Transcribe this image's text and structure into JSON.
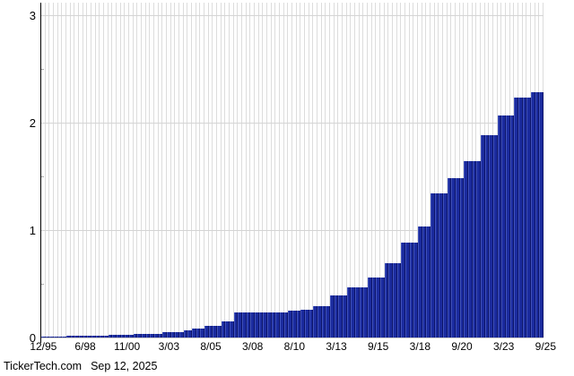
{
  "footer": {
    "source": "TickerTech.com",
    "date": "Sep 12, 2025"
  },
  "chart_data": {
    "type": "bar",
    "title": "",
    "xlabel": "",
    "ylabel": "",
    "ylim": [
      0,
      3
    ],
    "y_ticks": [
      0,
      1,
      2,
      3
    ],
    "y_minor_ticks": [
      0.5,
      1.5,
      2.5
    ],
    "grid": "on",
    "legend": "none",
    "bar_color": "#1b2b9e",
    "bar_highlight_color": "#4052bc",
    "bar_shadow_color": "#0c1468",
    "grid_color": "#dcdcdc",
    "axis_color": "#000000",
    "x_tick_labels": [
      "12/95",
      "6/98",
      "11/00",
      "3/03",
      "8/05",
      "3/08",
      "8/10",
      "3/13",
      "9/15",
      "3/18",
      "9/20",
      "3/23",
      "9/25"
    ],
    "x_tick_positions": [
      0,
      10,
      20,
      30,
      40,
      50,
      60,
      70,
      80,
      90,
      100,
      110,
      120
    ],
    "values": [
      0.01,
      0.01,
      0.01,
      0.01,
      0.01,
      0.01,
      0.015,
      0.015,
      0.015,
      0.015,
      0.015,
      0.015,
      0.015,
      0.015,
      0.015,
      0.015,
      0.025,
      0.025,
      0.025,
      0.025,
      0.025,
      0.025,
      0.03,
      0.03,
      0.03,
      0.03,
      0.03,
      0.03,
      0.03,
      0.05,
      0.05,
      0.05,
      0.05,
      0.05,
      0.065,
      0.065,
      0.085,
      0.085,
      0.085,
      0.105,
      0.105,
      0.105,
      0.105,
      0.15,
      0.15,
      0.15,
      0.235,
      0.235,
      0.235,
      0.235,
      0.235,
      0.235,
      0.235,
      0.235,
      0.235,
      0.235,
      0.235,
      0.235,
      0.235,
      0.25,
      0.25,
      0.25,
      0.26,
      0.26,
      0.26,
      0.29,
      0.29,
      0.29,
      0.29,
      0.39,
      0.39,
      0.39,
      0.39,
      0.47,
      0.47,
      0.47,
      0.47,
      0.47,
      0.56,
      0.56,
      0.56,
      0.56,
      0.69,
      0.69,
      0.69,
      0.69,
      0.88,
      0.88,
      0.88,
      0.88,
      1.03,
      1.03,
      1.03,
      1.34,
      1.34,
      1.34,
      1.34,
      1.48,
      1.48,
      1.48,
      1.48,
      1.64,
      1.64,
      1.64,
      1.64,
      1.88,
      1.88,
      1.88,
      1.88,
      2.07,
      2.07,
      2.07,
      2.07,
      2.23,
      2.23,
      2.23,
      2.23,
      2.28,
      2.28,
      2.28
    ]
  }
}
